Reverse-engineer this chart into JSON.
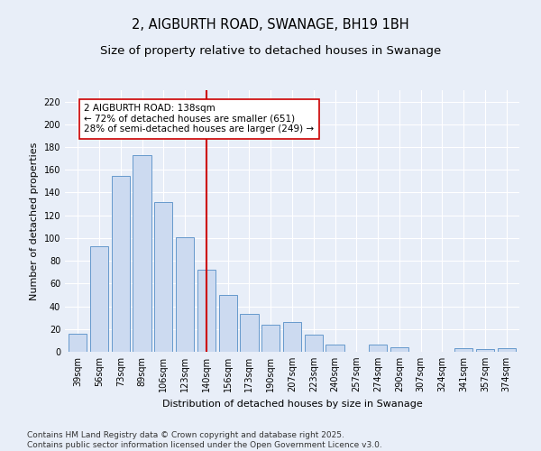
{
  "title": "2, AIGBURTH ROAD, SWANAGE, BH19 1BH",
  "subtitle": "Size of property relative to detached houses in Swanage",
  "xlabel": "Distribution of detached houses by size in Swanage",
  "ylabel": "Number of detached properties",
  "categories": [
    "39sqm",
    "56sqm",
    "73sqm",
    "89sqm",
    "106sqm",
    "123sqm",
    "140sqm",
    "156sqm",
    "173sqm",
    "190sqm",
    "207sqm",
    "223sqm",
    "240sqm",
    "257sqm",
    "274sqm",
    "290sqm",
    "307sqm",
    "324sqm",
    "341sqm",
    "357sqm",
    "374sqm"
  ],
  "values": [
    16,
    93,
    155,
    173,
    132,
    101,
    72,
    50,
    33,
    24,
    26,
    15,
    6,
    0,
    6,
    4,
    0,
    0,
    3,
    2,
    3
  ],
  "bar_color": "#ccdaf0",
  "bar_edge_color": "#6699cc",
  "vline_x_index": 6,
  "vline_color": "#cc0000",
  "annotation_text": "2 AIGBURTH ROAD: 138sqm\n← 72% of detached houses are smaller (651)\n28% of semi-detached houses are larger (249) →",
  "annotation_box_color": "#ffffff",
  "annotation_box_edge": "#cc0000",
  "ylim": [
    0,
    230
  ],
  "yticks": [
    0,
    20,
    40,
    60,
    80,
    100,
    120,
    140,
    160,
    180,
    200,
    220
  ],
  "background_color": "#e8eef8",
  "grid_color": "#ffffff",
  "footer": "Contains HM Land Registry data © Crown copyright and database right 2025.\nContains public sector information licensed under the Open Government Licence v3.0.",
  "title_fontsize": 10.5,
  "subtitle_fontsize": 9.5,
  "axis_label_fontsize": 8,
  "tick_fontsize": 7,
  "footer_fontsize": 6.5,
  "ann_fontsize": 7.5
}
